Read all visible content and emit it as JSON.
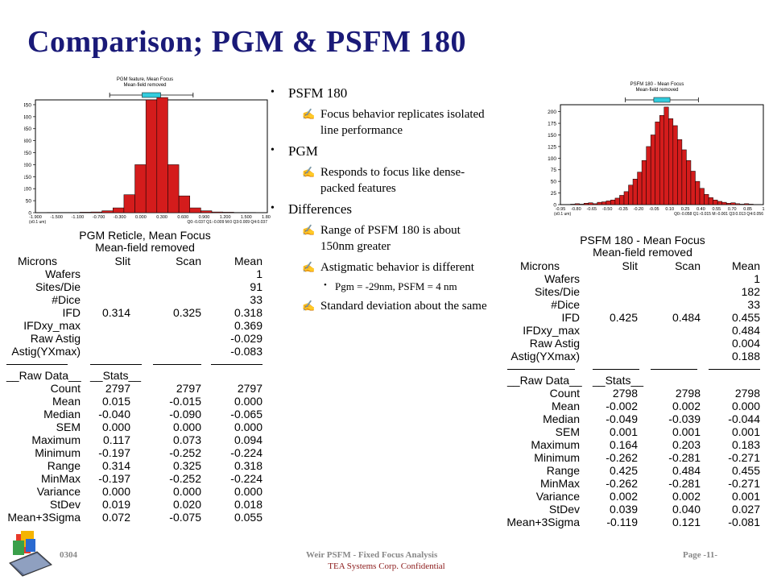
{
  "title": "Comparison;  PGM  & PSFM 180",
  "bullets": [
    {
      "label": "PSFM 180",
      "subs": [
        {
          "text": "Focus behavior replicates isolated line performance",
          "lines": [
            "Focus behavior replicates isolated",
            "line performance"
          ]
        }
      ]
    },
    {
      "label": "PGM",
      "subs": [
        {
          "text": "Responds to focus like dense-packed features",
          "lines": [
            "Responds to focus like dense-",
            "packed features"
          ]
        }
      ]
    },
    {
      "label": "Differences",
      "subs": [
        {
          "lines": [
            "Range of PSFM 180 is about",
            "150nm greater"
          ]
        },
        {
          "lines": [
            "Astigmatic behavior is different"
          ],
          "subsub": [
            "Pgm = -29nm, PSFM = 4 nm"
          ]
        },
        {
          "lines": [
            "Standard deviation about the same"
          ]
        }
      ]
    }
  ],
  "chart_data": [
    {
      "type": "bar",
      "title": "PGM feature, Mean Focus",
      "subtitle": "Mean-field removed",
      "yticks": [
        0,
        50,
        100,
        150,
        200,
        250,
        300,
        350,
        400,
        450
      ],
      "ylim": [
        0,
        470
      ],
      "xticks": [
        "-1.900",
        "-1.500",
        "-1.100",
        "-0.700",
        "-0.300",
        "0.000",
        "0.300",
        "0.600",
        "0.900",
        "1.200",
        "1.500",
        "1.800"
      ],
      "xunit": "(x0.1 um)",
      "stats_line": "Q0:-0.037 Q1:-0.009 M:0 Q3:0.009 Q4:0.037",
      "values": [
        1,
        1,
        1,
        2,
        3,
        8,
        20,
        75,
        200,
        470,
        480,
        200,
        70,
        20,
        8,
        3,
        2,
        1,
        1
      ]
    },
    {
      "type": "bar",
      "title": "PSFM 180 - Mean Focus",
      "subtitle": "Mean-field removed",
      "yticks": [
        0,
        25,
        50,
        75,
        100,
        125,
        150,
        175,
        200
      ],
      "ylim": [
        0,
        215
      ],
      "xticks": [
        "-0.95",
        "-0.80",
        "-0.65",
        "-0.50",
        "-0.35",
        "-0.20",
        "-0.05",
        "0.10",
        "0.25",
        "0.40",
        "0.55",
        "0.70",
        "0.85",
        "1"
      ],
      "xunit": "(x0.1 um)",
      "stats_line": "Q0:-0.058 Q1:-0.015 M:-0.001 Q3:0.013 Q4:0.056",
      "values": [
        1,
        2,
        1,
        3,
        4,
        2,
        5,
        6,
        8,
        10,
        14,
        20,
        28,
        42,
        55,
        70,
        95,
        125,
        150,
        178,
        192,
        210,
        185,
        170,
        140,
        118,
        95,
        72,
        50,
        35,
        22,
        15,
        10,
        7,
        5,
        3,
        4,
        2,
        1,
        2,
        1
      ]
    }
  ],
  "pgm_table": {
    "title": "PGM Reticle, Mean Focus",
    "subtitle": "Mean-field removed",
    "headers": [
      "Microns",
      "Slit",
      "Scan",
      "Mean"
    ],
    "rows": [
      [
        "Wafers",
        "",
        "",
        "1"
      ],
      [
        "Sites/Die",
        "",
        "",
        "91"
      ],
      [
        "#Dice",
        "",
        "",
        "33"
      ],
      [
        "IFD",
        "0.314",
        "0.325",
        "0.318"
      ],
      [
        "IFDxy_max",
        "",
        "",
        "0.369"
      ],
      [
        "Raw Astig",
        "",
        "",
        "-0.029"
      ],
      [
        "Astig(YXmax)",
        "",
        "",
        "-0.083"
      ]
    ],
    "raw_label": "__Raw Data__",
    "stats_label": "__Stats__",
    "stat_rows": [
      [
        "Count",
        "2797",
        "2797",
        "2797"
      ],
      [
        "Mean",
        "0.015",
        "-0.015",
        "0.000"
      ],
      [
        "Median",
        "-0.040",
        "-0.090",
        "-0.065"
      ],
      [
        "SEM",
        "0.000",
        "0.000",
        "0.000"
      ],
      [
        "Maximum",
        "0.117",
        "0.073",
        "0.094"
      ],
      [
        "Minimum",
        "-0.197",
        "-0.252",
        "-0.224"
      ],
      [
        "Range",
        "0.314",
        "0.325",
        "0.318"
      ],
      [
        "MinMax",
        "-0.197",
        "-0.252",
        "-0.224"
      ],
      [
        "Variance",
        "0.000",
        "0.000",
        "0.000"
      ],
      [
        "StDev",
        "0.019",
        "0.020",
        "0.018"
      ],
      [
        "Mean+3Sigma",
        "0.072",
        "-0.075",
        "0.055"
      ]
    ]
  },
  "psfm_table": {
    "title": "PSFM 180 - Mean Focus",
    "subtitle": "Mean-field removed",
    "headers": [
      "Microns",
      "Slit",
      "Scan",
      "Mean"
    ],
    "rows": [
      [
        "Wafers",
        "",
        "",
        "1"
      ],
      [
        "Sites/Die",
        "",
        "",
        "182"
      ],
      [
        "#Dice",
        "",
        "",
        "33"
      ],
      [
        "IFD",
        "0.425",
        "0.484",
        "0.455"
      ],
      [
        "IFDxy_max",
        "",
        "",
        "0.484"
      ],
      [
        "Raw Astig",
        "",
        "",
        "0.004"
      ],
      [
        "Astig(YXmax)",
        "",
        "",
        "0.188"
      ]
    ],
    "raw_label": "__Raw Data__",
    "stats_label": "__Stats__",
    "stat_rows": [
      [
        "Count",
        "2798",
        "2798",
        "2798"
      ],
      [
        "Mean",
        "-0.002",
        "0.002",
        "0.000"
      ],
      [
        "Median",
        "-0.049",
        "-0.039",
        "-0.044"
      ],
      [
        "SEM",
        "0.001",
        "0.001",
        "0.001"
      ],
      [
        "Maximum",
        "0.164",
        "0.203",
        "0.183"
      ],
      [
        "Minimum",
        "-0.262",
        "-0.281",
        "-0.271"
      ],
      [
        "Range",
        "0.425",
        "0.484",
        "0.455"
      ],
      [
        "MinMax",
        "-0.262",
        "-0.281",
        "-0.271"
      ],
      [
        "Variance",
        "0.002",
        "0.002",
        "0.001"
      ],
      [
        "StDev",
        "0.039",
        "0.040",
        "0.027"
      ],
      [
        "Mean+3Sigma",
        "-0.119",
        "0.121",
        "-0.081"
      ]
    ]
  },
  "footer": {
    "left": "0304",
    "center": "Weir PSFM - Fixed Focus Analysis",
    "right": "Page -11-",
    "confidential": "TEA Systems Corp. Confidential"
  },
  "colors": {
    "title": "#1a1a78",
    "bar": "#d41c1c",
    "bar_edge": "#000000",
    "median_box": "#33ccdd",
    "confidential": "#8b1a1a"
  }
}
